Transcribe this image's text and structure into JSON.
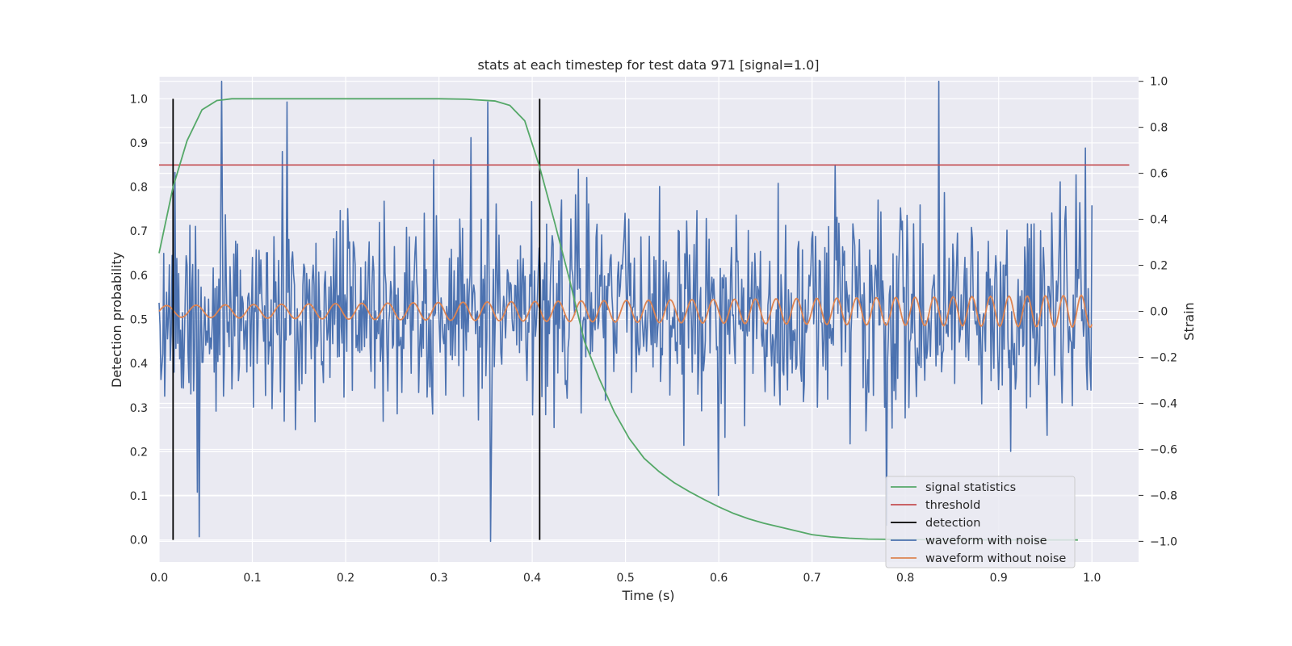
{
  "chart_data": {
    "type": "line",
    "title": "stats at each timestep for test data 971 [signal=1.0]",
    "xlabel": "Time (s)",
    "ylabel": "Detection probability",
    "y2label": "Strain",
    "xlim": [
      0.0,
      1.05
    ],
    "ylim": [
      -0.05,
      1.05
    ],
    "y2lim": [
      -1.09,
      1.02
    ],
    "xticks": [
      "0.0",
      "0.1",
      "0.2",
      "0.3",
      "0.4",
      "0.5",
      "0.6",
      "0.7",
      "0.8",
      "0.9",
      "1.0"
    ],
    "yticks": [
      "0.0",
      "0.1",
      "0.2",
      "0.3",
      "0.4",
      "0.5",
      "0.6",
      "0.7",
      "0.8",
      "0.9",
      "1.0"
    ],
    "y2ticks": [
      "−1.0",
      "−0.8",
      "−0.6",
      "−0.4",
      "−0.2",
      "0.0",
      "0.2",
      "0.4",
      "0.6",
      "0.8",
      "1.0"
    ],
    "grid": true,
    "legend_position": "lower-right",
    "series": [
      {
        "name": "signal statistics",
        "axis": "left",
        "color": "#55a868",
        "x": [
          0.0,
          0.015,
          0.03,
          0.046,
          0.062,
          0.078,
          0.1,
          0.2,
          0.3,
          0.33,
          0.36,
          0.376,
          0.392,
          0.408,
          0.424,
          0.44,
          0.456,
          0.472,
          0.488,
          0.504,
          0.52,
          0.536,
          0.552,
          0.568,
          0.584,
          0.6,
          0.616,
          0.632,
          0.648,
          0.664,
          0.68,
          0.7,
          0.72,
          0.74,
          0.76,
          0.8,
          0.9,
          0.985
        ],
        "y": [
          0.65,
          0.8,
          0.905,
          0.975,
          0.996,
          1.0,
          1.0,
          1.0,
          1.0,
          0.999,
          0.995,
          0.985,
          0.95,
          0.845,
          0.72,
          0.59,
          0.45,
          0.365,
          0.29,
          0.23,
          0.185,
          0.155,
          0.13,
          0.11,
          0.092,
          0.075,
          0.06,
          0.048,
          0.038,
          0.03,
          0.022,
          0.012,
          0.007,
          0.004,
          0.002,
          0.001,
          0.0,
          0.0
        ]
      },
      {
        "name": "threshold",
        "axis": "left",
        "color": "#c44e52",
        "x": [
          0.0,
          1.04
        ],
        "y": [
          0.85,
          0.85
        ]
      },
      {
        "name": "detection",
        "axis": "left",
        "color": "#000000",
        "segments": [
          {
            "x": 0.015,
            "y": [
              0.0,
              1.0
            ]
          },
          {
            "x": 0.408,
            "y": [
              0.0,
              1.0
            ]
          }
        ]
      },
      {
        "name": "waveform with noise",
        "axis": "right",
        "color": "#4c72b0",
        "x_range": [
          0.0,
          1.0
        ],
        "n_points": 1000,
        "approx_std": 0.22,
        "notable_extrema": [
          {
            "x": 0.067,
            "y": 1.0
          },
          {
            "x": 0.137,
            "y": 0.91
          },
          {
            "x": 0.352,
            "y": 0.91
          },
          {
            "x": 0.355,
            "y": -1.0
          },
          {
            "x": 0.043,
            "y": -0.98
          },
          {
            "x": 0.6,
            "y": -0.8
          },
          {
            "x": 0.78,
            "y": -0.93
          },
          {
            "x": 0.836,
            "y": 1.0
          },
          {
            "x": 0.993,
            "y": 0.71
          }
        ]
      },
      {
        "name": "waveform without noise",
        "axis": "right",
        "color": "#dd8452",
        "x_range": [
          0.0,
          1.0
        ],
        "amplitude_start": 0.025,
        "amplitude_end": 0.07,
        "cycles": 31,
        "offset": 0.0
      }
    ]
  }
}
